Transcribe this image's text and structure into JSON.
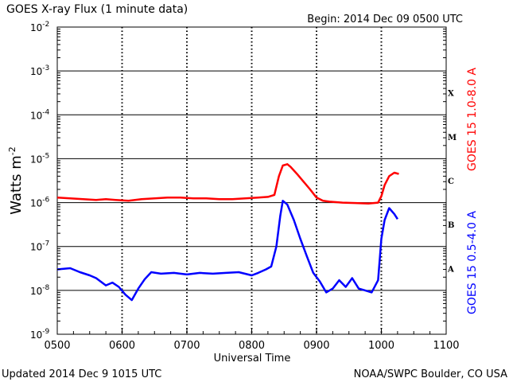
{
  "chart_data": {
    "type": "line",
    "title": "GOES X-ray Flux (1 minute data)",
    "begin": "Begin: 2014 Dec 09 0500 UTC",
    "xlabel": "Universal Time",
    "ylabel_base": "Watts m",
    "ylabel_exp": "-2",
    "x_ticks": [
      "0500",
      "0600",
      "0700",
      "0800",
      "0900",
      "1000",
      "1100"
    ],
    "xlim": [
      5,
      11
    ],
    "y_scale": "log",
    "ylim": [
      1e-09,
      0.01
    ],
    "y_ticks": [
      {
        "base": "10",
        "exp": "-9"
      },
      {
        "base": "10",
        "exp": "-8"
      },
      {
        "base": "10",
        "exp": "-7"
      },
      {
        "base": "10",
        "exp": "-6"
      },
      {
        "base": "10",
        "exp": "-5"
      },
      {
        "base": "10",
        "exp": "-4"
      },
      {
        "base": "10",
        "exp": "-3"
      },
      {
        "base": "10",
        "exp": "-2"
      }
    ],
    "flare_classes": [
      "A",
      "B",
      "C",
      "M",
      "X"
    ],
    "footer_left": "Updated 2014 Dec  9 1015 UTC",
    "footer_right": "NOAA/SWPC Boulder, CO USA",
    "series": [
      {
        "name": "GOES 15 1.0-8.0 A",
        "color": "#ff0000",
        "points": [
          [
            5.0,
            1.3e-06
          ],
          [
            5.2,
            1.25e-06
          ],
          [
            5.4,
            1.2e-06
          ],
          [
            5.6,
            1.15e-06
          ],
          [
            5.75,
            1.2e-06
          ],
          [
            5.9,
            1.15e-06
          ],
          [
            6.1,
            1.1e-06
          ],
          [
            6.3,
            1.2e-06
          ],
          [
            6.5,
            1.25e-06
          ],
          [
            6.7,
            1.3e-06
          ],
          [
            6.9,
            1.3e-06
          ],
          [
            7.1,
            1.25e-06
          ],
          [
            7.3,
            1.25e-06
          ],
          [
            7.5,
            1.2e-06
          ],
          [
            7.7,
            1.2e-06
          ],
          [
            7.9,
            1.25e-06
          ],
          [
            8.1,
            1.3e-06
          ],
          [
            8.25,
            1.35e-06
          ],
          [
            8.35,
            1.5e-06
          ],
          [
            8.42,
            4e-06
          ],
          [
            8.48,
            7e-06
          ],
          [
            8.55,
            7.5e-06
          ],
          [
            8.6,
            6.5e-06
          ],
          [
            8.7,
            4.5e-06
          ],
          [
            8.8,
            3e-06
          ],
          [
            8.9,
            2e-06
          ],
          [
            9.0,
            1.3e-06
          ],
          [
            9.1,
            1.1e-06
          ],
          [
            9.2,
            1.05e-06
          ],
          [
            9.4,
            1e-06
          ],
          [
            9.6,
            9.8e-07
          ],
          [
            9.8,
            9.5e-07
          ],
          [
            9.95,
            1e-06
          ],
          [
            10.0,
            1.4e-06
          ],
          [
            10.05,
            2.5e-06
          ],
          [
            10.12,
            4e-06
          ],
          [
            10.2,
            4.8e-06
          ],
          [
            10.27,
            4.5e-06
          ]
        ]
      },
      {
        "name": "GOES 15 0.5-4.0 A",
        "color": "#0000ff",
        "points": [
          [
            5.0,
            3e-08
          ],
          [
            5.2,
            3.2e-08
          ],
          [
            5.35,
            2.6e-08
          ],
          [
            5.5,
            2.2e-08
          ],
          [
            5.6,
            1.9e-08
          ],
          [
            5.75,
            1.3e-08
          ],
          [
            5.85,
            1.5e-08
          ],
          [
            5.95,
            1.2e-08
          ],
          [
            6.05,
            8e-09
          ],
          [
            6.15,
            6e-09
          ],
          [
            6.25,
            1.1e-08
          ],
          [
            6.35,
            1.8e-08
          ],
          [
            6.45,
            2.6e-08
          ],
          [
            6.6,
            2.4e-08
          ],
          [
            6.8,
            2.5e-08
          ],
          [
            7.0,
            2.3e-08
          ],
          [
            7.2,
            2.5e-08
          ],
          [
            7.4,
            2.4e-08
          ],
          [
            7.6,
            2.5e-08
          ],
          [
            7.8,
            2.6e-08
          ],
          [
            8.0,
            2.2e-08
          ],
          [
            8.1,
            2.5e-08
          ],
          [
            8.22,
            3e-08
          ],
          [
            8.3,
            3.5e-08
          ],
          [
            8.38,
            1e-07
          ],
          [
            8.44,
            5e-07
          ],
          [
            8.48,
            1.1e-06
          ],
          [
            8.55,
            9e-07
          ],
          [
            8.65,
            4e-07
          ],
          [
            8.75,
            1.5e-07
          ],
          [
            8.85,
            6e-08
          ],
          [
            8.95,
            2.5e-08
          ],
          [
            9.05,
            1.6e-08
          ],
          [
            9.15,
            9e-09
          ],
          [
            9.25,
            1.1e-08
          ],
          [
            9.35,
            1.7e-08
          ],
          [
            9.45,
            1.2e-08
          ],
          [
            9.55,
            1.9e-08
          ],
          [
            9.65,
            1.1e-08
          ],
          [
            9.75,
            1e-08
          ],
          [
            9.85,
            9e-09
          ],
          [
            9.95,
            1.7e-08
          ],
          [
            10.0,
            1.5e-07
          ],
          [
            10.05,
            4e-07
          ],
          [
            10.12,
            7.5e-07
          ],
          [
            10.2,
            5.5e-07
          ],
          [
            10.25,
            4.2e-07
          ]
        ]
      }
    ]
  }
}
